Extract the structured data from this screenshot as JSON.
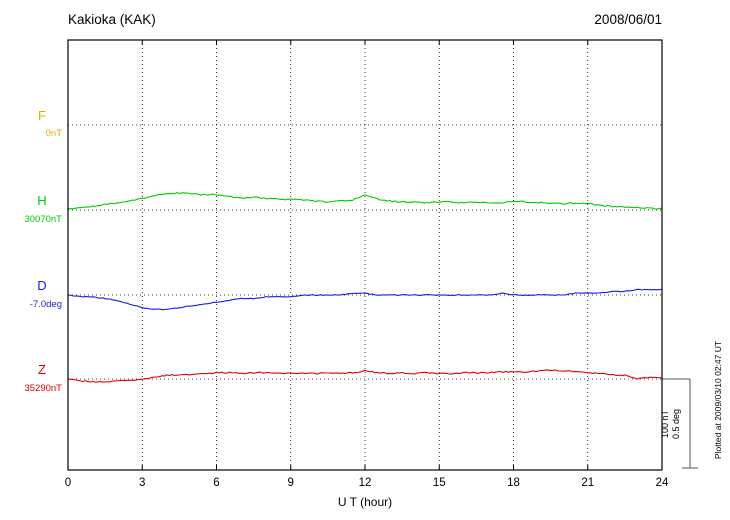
{
  "header": {
    "station": "Kakioka (KAK)",
    "date": "2008/06/01"
  },
  "axis": {
    "xlabel": "U T (hour)"
  },
  "scale_bar": {
    "nt": "100 nT",
    "deg": "0.5 deg"
  },
  "note": "Plotted at 2009/03/10 02:47 UT",
  "chart_data": {
    "type": "line",
    "title": "Kakioka (KAK) magnetogram 2008/06/01",
    "xlabel": "U T (hour)",
    "x_range_hours": [
      0,
      24
    ],
    "x_step_hours": 0.5,
    "tick_hours": [
      0,
      3,
      6,
      9,
      12,
      15,
      18,
      21,
      24
    ],
    "grid": "dotted vertical gridlines every 3 hours; dotted horizontal baseline per channel",
    "scale": {
      "nT_per_bar": 100,
      "deg_per_bar": 0.5
    },
    "series": [
      {
        "name": "F",
        "unit": "nT",
        "baseline": "0nT",
        "color": "#F5A300",
        "plotted": false,
        "values": [
          0,
          0,
          0,
          0,
          0,
          0,
          0,
          0,
          0,
          0,
          0,
          0,
          0,
          0,
          0,
          0,
          0,
          0,
          0,
          0,
          0,
          0,
          0,
          0,
          0,
          0,
          0,
          0,
          0,
          0,
          0,
          0,
          0,
          0,
          0,
          0,
          0,
          0,
          0,
          0,
          0,
          0,
          0,
          0,
          0,
          0,
          0,
          0,
          0
        ]
      },
      {
        "name": "H",
        "unit": "nT",
        "baseline": "30070nT",
        "color": "#00CC00",
        "plotted": true,
        "values": [
          1,
          3,
          4,
          6,
          8,
          10,
          13,
          16,
          18,
          19,
          18,
          17,
          17,
          15,
          13,
          14,
          13,
          12,
          12,
          11,
          10,
          9,
          10,
          11,
          17,
          12,
          10,
          9,
          9,
          8,
          9,
          9,
          8,
          9,
          8,
          8,
          10,
          9,
          8,
          8,
          7,
          8,
          7,
          5,
          4,
          3,
          3,
          2,
          1
        ]
      },
      {
        "name": "D",
        "unit": "deg",
        "baseline": "-7.0deg",
        "color": "#1A1AE6",
        "plotted": true,
        "values": [
          0,
          -0.01,
          -0.01,
          -0.02,
          -0.03,
          -0.05,
          -0.07,
          -0.08,
          -0.08,
          -0.07,
          -0.06,
          -0.05,
          -0.04,
          -0.03,
          -0.02,
          -0.02,
          -0.01,
          -0.01,
          -0.01,
          0,
          0,
          0,
          0,
          0.01,
          0.01,
          0,
          0,
          0,
          0,
          0,
          0,
          0,
          0,
          0,
          0,
          0.01,
          0,
          0,
          0,
          0,
          0,
          0.01,
          0.01,
          0.01,
          0.02,
          0.02,
          0.03,
          0.03,
          0.03
        ]
      },
      {
        "name": "Z",
        "unit": "nT",
        "baseline": "35290nT",
        "color": "#E60000",
        "plotted": true,
        "values": [
          0,
          -2,
          -3,
          -3,
          -2,
          -2,
          0,
          2,
          4,
          5,
          5,
          6,
          7,
          7,
          6,
          7,
          7,
          7,
          6,
          6,
          6,
          7,
          6,
          7,
          9,
          7,
          6,
          7,
          6,
          7,
          6,
          6,
          7,
          7,
          7,
          8,
          8,
          8,
          9,
          10,
          9,
          8,
          7,
          6,
          5,
          4,
          0,
          2,
          2
        ]
      }
    ]
  }
}
